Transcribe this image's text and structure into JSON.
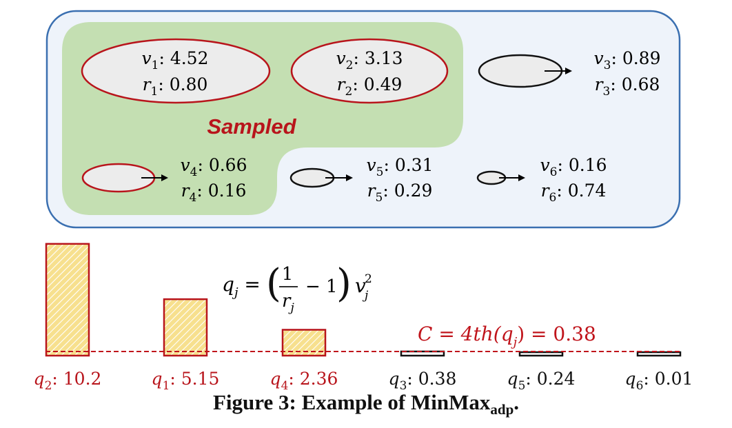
{
  "colors": {
    "panel_border": "#3a6fb0",
    "panel_fill": "#eef3fa",
    "sampled_fill": "#c4dfb2",
    "sampled_border": "#b8141b",
    "unsampled_border": "#111111",
    "bar_fill": "#f5d978",
    "threshold": "#c0141b"
  },
  "sampled_label": "Sampled",
  "items": [
    {
      "id": "1",
      "v": "4.52",
      "r": "0.80",
      "sampled": true
    },
    {
      "id": "2",
      "v": "3.13",
      "r": "0.49",
      "sampled": true
    },
    {
      "id": "3",
      "v": "0.89",
      "r": "0.68",
      "sampled": false
    },
    {
      "id": "4",
      "v": "0.66",
      "r": "0.16",
      "sampled": true
    },
    {
      "id": "5",
      "v": "0.31",
      "r": "0.29",
      "sampled": false
    },
    {
      "id": "6",
      "v": "0.16",
      "r": "0.74",
      "sampled": false
    }
  ],
  "formula": {
    "lhs": "q",
    "lhs_sub": "j",
    "numerator": "1",
    "denominator": "r",
    "denominator_sub": "j",
    "minus": "− 1",
    "v": "v",
    "v_sub": "j",
    "v_sup": "2"
  },
  "threshold_label": "C = 4th(q",
  "threshold_label_sub": "j",
  "threshold_label_end": ") = 0.38",
  "chart_data": {
    "type": "bar",
    "categories": [
      "q2",
      "q1",
      "q4",
      "q3",
      "q5",
      "q6"
    ],
    "values": [
      10.2,
      5.15,
      2.36,
      0.38,
      0.24,
      0.01
    ],
    "threshold": 0.38,
    "selected": [
      true,
      true,
      true,
      false,
      false,
      false
    ]
  },
  "bar_labels": [
    {
      "sym": "q",
      "sub": "2",
      "value": "10.2"
    },
    {
      "sym": "q",
      "sub": "1",
      "value": "5.15"
    },
    {
      "sym": "q",
      "sub": "4",
      "value": "2.36"
    },
    {
      "sym": "q",
      "sub": "3",
      "value": "0.38"
    },
    {
      "sym": "q",
      "sub": "5",
      "value": "0.24"
    },
    {
      "sym": "q",
      "sub": "6",
      "value": "0.01"
    }
  ],
  "caption": {
    "text": "Figure 3: Example of MinMax",
    "sub": "adp",
    "end": "."
  }
}
